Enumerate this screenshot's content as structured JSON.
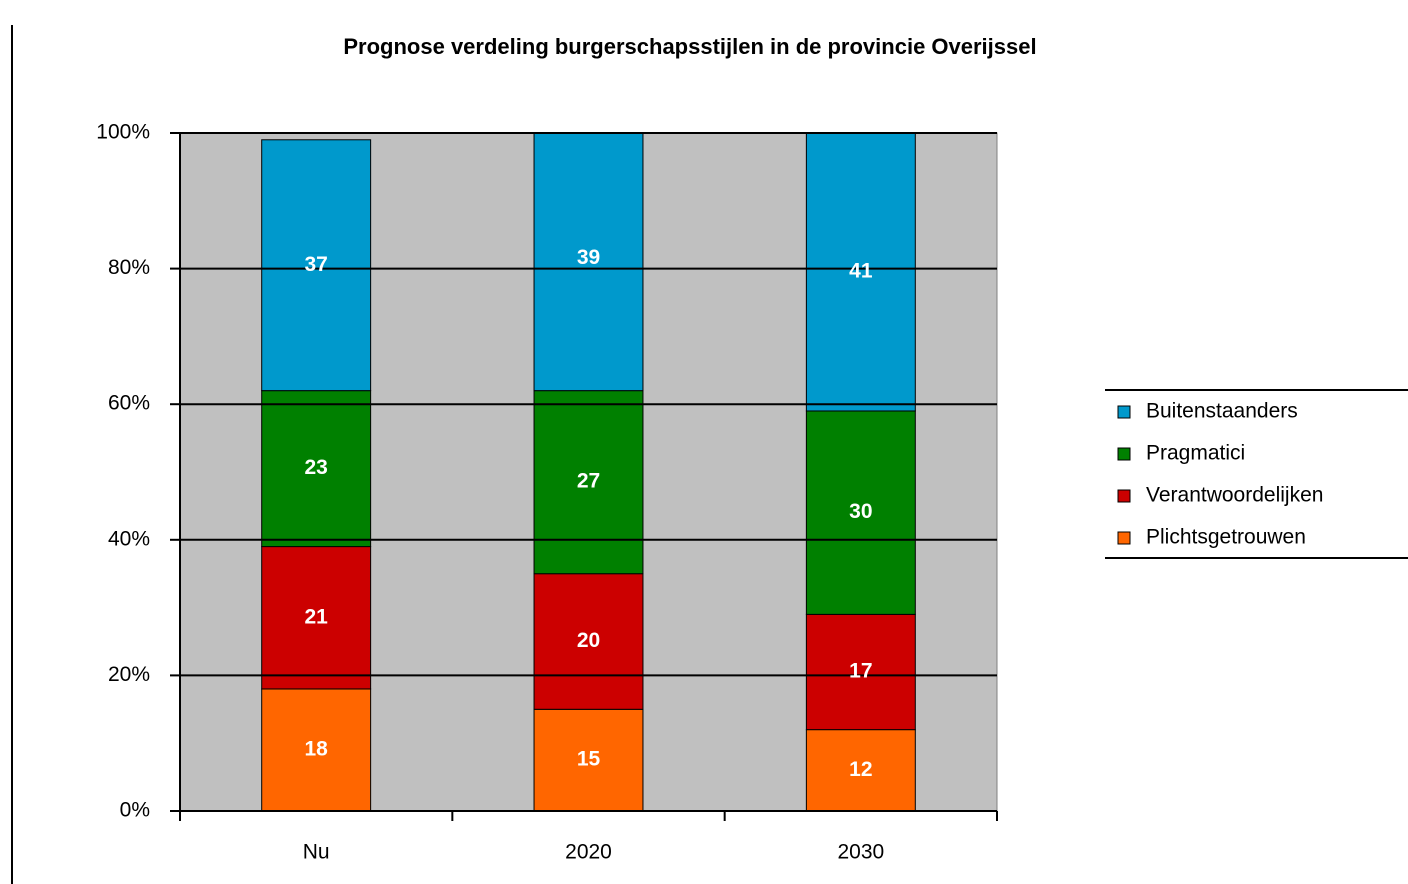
{
  "chart_data": {
    "type": "bar",
    "stacked": true,
    "title": "Prognose verdeling burgerschapsstijlen in de provincie Overijssel",
    "categories": [
      "Nu",
      "2020",
      "2030"
    ],
    "series": [
      {
        "name": "Plichtsgetrouwen",
        "color": "#ff6600",
        "values": [
          18,
          15,
          12
        ]
      },
      {
        "name": "Verantwoordelijken",
        "color": "#cc0000",
        "values": [
          21,
          20,
          17
        ]
      },
      {
        "name": "Pragmatici",
        "color": "#008000",
        "values": [
          23,
          27,
          30
        ]
      },
      {
        "name": "Buitenstaanders",
        "color": "#0099cc",
        "values": [
          37,
          39,
          41
        ]
      }
    ],
    "ylim": [
      0,
      100
    ],
    "yticks": [
      {
        "value": 0,
        "label": "0%"
      },
      {
        "value": 20,
        "label": "20%"
      },
      {
        "value": 40,
        "label": "40%"
      },
      {
        "value": 60,
        "label": "60%"
      },
      {
        "value": 80,
        "label": "80%"
      },
      {
        "value": 100,
        "label": "100%"
      }
    ],
    "grid": true,
    "legend": "right"
  }
}
